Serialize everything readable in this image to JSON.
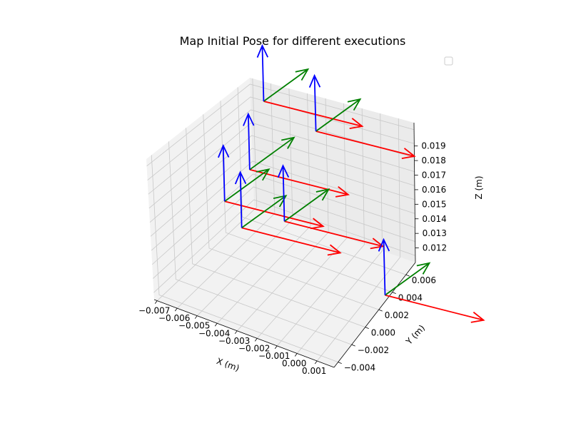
{
  "chart_data": {
    "type": "quiver3d",
    "title": "Map Initial Pose for different executions",
    "xlabel": "X (m)",
    "ylabel": "Y (m)",
    "zlabel": "Z (m)",
    "x_ticks": [
      "−0.007",
      "−0.006",
      "−0.005",
      "−0.004",
      "−0.003",
      "−0.002",
      "−0.001",
      "0.000",
      "0.001"
    ],
    "y_ticks": [
      "−0.004",
      "−0.002",
      "0.000",
      "0.002",
      "0.004",
      "0.006"
    ],
    "z_ticks": [
      "0.012",
      "0.013",
      "0.014",
      "0.015",
      "0.016",
      "0.017",
      "0.018",
      "0.019"
    ],
    "grid": true,
    "legend": {
      "placement": "upper right",
      "entries": []
    },
    "axis_colors": {
      "x": "#ff0000",
      "y": "#008000",
      "z": "#0000ff"
    },
    "pose_origins": [
      {
        "x": -0.0064,
        "y": 0.0062,
        "z": 0.0186
      },
      {
        "x": -0.0038,
        "y": 0.0066,
        "z": 0.0176
      },
      {
        "x": -0.0058,
        "y": 0.0034,
        "z": 0.016
      },
      {
        "x": -0.0061,
        "y": 0.0012,
        "z": 0.015
      },
      {
        "x": -0.0052,
        "y": 0.0011,
        "z": 0.0138
      },
      {
        "x": -0.0035,
        "y": 0.0022,
        "z": 0.0144
      },
      {
        "x": 0.0012,
        "y": 0.0034,
        "z": 0.0112
      }
    ]
  }
}
